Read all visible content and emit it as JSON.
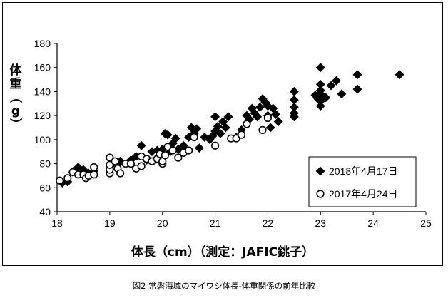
{
  "caption": "図2 常磐海域のマイワシ体長-体重関係の前年比較",
  "chart_data": {
    "type": "scatter",
    "xlabel": "体長（cm）（測定：JAFIC銚子）",
    "ylabel": "体重（g）",
    "xlim": [
      18,
      25
    ],
    "ylim": [
      40,
      180
    ],
    "xticks": [
      "18",
      "19",
      "20",
      "21",
      "22",
      "23",
      "24",
      "25"
    ],
    "yticks": [
      "40",
      "60",
      "80",
      "100",
      "120",
      "140",
      "160",
      "180"
    ],
    "grid": false,
    "legend_position": "bottom-right",
    "series": [
      {
        "name": "2018年4月17日",
        "marker": "diamond-filled",
        "color": "#000000",
        "points": [
          [
            18.1,
            64
          ],
          [
            18.2,
            65
          ],
          [
            18.3,
            73
          ],
          [
            18.4,
            77
          ],
          [
            18.5,
            75
          ],
          [
            18.6,
            72
          ],
          [
            18.7,
            74
          ],
          [
            19.1,
            80
          ],
          [
            19.2,
            82
          ],
          [
            19.4,
            83
          ],
          [
            19.5,
            86
          ],
          [
            19.6,
            95
          ],
          [
            19.7,
            83
          ],
          [
            19.8,
            90
          ],
          [
            19.9,
            91
          ],
          [
            20.0,
            92
          ],
          [
            20.05,
            105
          ],
          [
            20.1,
            104
          ],
          [
            20.15,
            90
          ],
          [
            20.2,
            97
          ],
          [
            20.25,
            101
          ],
          [
            20.3,
            92
          ],
          [
            20.4,
            95
          ],
          [
            20.5,
            102
          ],
          [
            20.55,
            110
          ],
          [
            20.6,
            105
          ],
          [
            20.65,
            109
          ],
          [
            20.7,
            93
          ],
          [
            20.8,
            102
          ],
          [
            20.9,
            100
          ],
          [
            20.95,
            103
          ],
          [
            21.0,
            107
          ],
          [
            21.0,
            119
          ],
          [
            21.05,
            111
          ],
          [
            21.1,
            105
          ],
          [
            21.15,
            115
          ],
          [
            21.2,
            110
          ],
          [
            21.25,
            119
          ],
          [
            21.4,
            102
          ],
          [
            21.5,
            108
          ],
          [
            21.6,
            120
          ],
          [
            21.65,
            117
          ],
          [
            21.7,
            126
          ],
          [
            21.75,
            122
          ],
          [
            21.8,
            119
          ],
          [
            21.85,
            127
          ],
          [
            21.9,
            134
          ],
          [
            21.95,
            131
          ],
          [
            22.0,
            120
          ],
          [
            22.0,
            128
          ],
          [
            22.05,
            110
          ],
          [
            22.1,
            126
          ],
          [
            22.15,
            121
          ],
          [
            22.2,
            115
          ],
          [
            22.5,
            140
          ],
          [
            22.5,
            133
          ],
          [
            22.5,
            127
          ],
          [
            22.5,
            122
          ],
          [
            22.5,
            119
          ],
          [
            22.9,
            137
          ],
          [
            22.95,
            134
          ],
          [
            23.0,
            160
          ],
          [
            23.0,
            146
          ],
          [
            23.0,
            141
          ],
          [
            23.0,
            138
          ],
          [
            23.0,
            132
          ],
          [
            23.0,
            128
          ],
          [
            23.1,
            135
          ],
          [
            23.2,
            145
          ],
          [
            23.3,
            149
          ],
          [
            23.4,
            138
          ],
          [
            23.7,
            154
          ],
          [
            23.7,
            142
          ],
          [
            24.5,
            154
          ]
        ]
      },
      {
        "name": "2017年4月24日",
        "marker": "circle-open",
        "color": "#000000",
        "points": [
          [
            18.05,
            66
          ],
          [
            18.2,
            68
          ],
          [
            18.3,
            73
          ],
          [
            18.4,
            71
          ],
          [
            18.5,
            71
          ],
          [
            18.55,
            68
          ],
          [
            18.6,
            70
          ],
          [
            18.7,
            71
          ],
          [
            18.7,
            77
          ],
          [
            19.0,
            72
          ],
          [
            19.0,
            75
          ],
          [
            19.0,
            79
          ],
          [
            19.0,
            85
          ],
          [
            19.1,
            82
          ],
          [
            19.15,
            76
          ],
          [
            19.2,
            72
          ],
          [
            19.3,
            80
          ],
          [
            19.4,
            80
          ],
          [
            19.5,
            76
          ],
          [
            19.6,
            78
          ],
          [
            19.6,
            86
          ],
          [
            19.7,
            84
          ],
          [
            19.8,
            82
          ],
          [
            19.9,
            84
          ],
          [
            19.95,
            88
          ],
          [
            20.0,
            80
          ],
          [
            20.0,
            82
          ],
          [
            20.05,
            87
          ],
          [
            20.1,
            94
          ],
          [
            20.2,
            91
          ],
          [
            20.3,
            85
          ],
          [
            20.4,
            89
          ],
          [
            20.5,
            91
          ],
          [
            20.6,
            102
          ],
          [
            21.0,
            95
          ],
          [
            21.3,
            101
          ],
          [
            21.4,
            101
          ],
          [
            21.5,
            104
          ],
          [
            21.6,
            113
          ],
          [
            21.9,
            108
          ],
          [
            22.0,
            118
          ]
        ]
      }
    ]
  }
}
